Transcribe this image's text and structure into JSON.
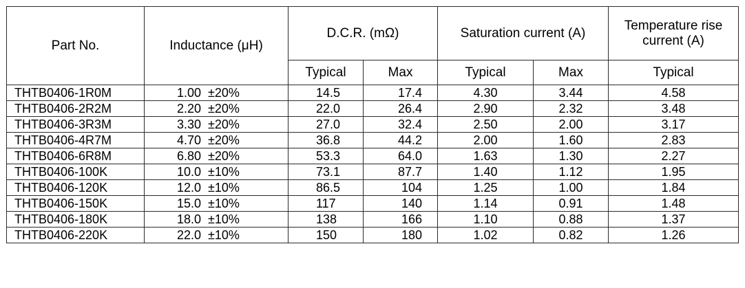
{
  "table": {
    "headers": {
      "part_no": "Part No.",
      "inductance": "Inductance (μH)",
      "dcr": "D.C.R. (mΩ)",
      "saturation": "Saturation current (A)",
      "temp_rise": "Temperature rise current (A)",
      "typical": "Typical",
      "max": "Max"
    },
    "rows": [
      {
        "part": "THTB0406-1R0M",
        "inductance": "1.00  ±20%",
        "dcr_typ": "14.5",
        "dcr_max": "17.4",
        "sat_typ": "4.30",
        "sat_max": "3.44",
        "temp_typ": "4.58"
      },
      {
        "part": "THTB0406-2R2M",
        "inductance": "2.20  ±20%",
        "dcr_typ": "22.0",
        "dcr_max": "26.4",
        "sat_typ": "2.90",
        "sat_max": "2.32",
        "temp_typ": "3.48"
      },
      {
        "part": "THTB0406-3R3M",
        "inductance": "3.30  ±20%",
        "dcr_typ": "27.0",
        "dcr_max": "32.4",
        "sat_typ": "2.50",
        "sat_max": "2.00",
        "temp_typ": "3.17"
      },
      {
        "part": "THTB0406-4R7M",
        "inductance": "4.70  ±20%",
        "dcr_typ": "36.8",
        "dcr_max": "44.2",
        "sat_typ": "2.00",
        "sat_max": "1.60",
        "temp_typ": "2.83"
      },
      {
        "part": "THTB0406-6R8M",
        "inductance": "6.80  ±20%",
        "dcr_typ": "53.3",
        "dcr_max": "64.0",
        "sat_typ": "1.63",
        "sat_max": "1.30",
        "temp_typ": "2.27"
      },
      {
        "part": "THTB0406-100K",
        "inductance": "10.0  ±10%",
        "dcr_typ": "73.1",
        "dcr_max": "87.7",
        "sat_typ": "1.40",
        "sat_max": "1.12",
        "temp_typ": "1.95"
      },
      {
        "part": "THTB0406-120K",
        "inductance": "12.0  ±10%",
        "dcr_typ": "86.5",
        "dcr_max": "104",
        "sat_typ": "1.25",
        "sat_max": "1.00",
        "temp_typ": "1.84"
      },
      {
        "part": "THTB0406-150K",
        "inductance": "15.0  ±10%",
        "dcr_typ": "117",
        "dcr_max": "140",
        "sat_typ": "1.14",
        "sat_max": "0.91",
        "temp_typ": "1.48"
      },
      {
        "part": "THTB0406-180K",
        "inductance": "18.0  ±10%",
        "dcr_typ": "138",
        "dcr_max": "166",
        "sat_typ": "1.10",
        "sat_max": "0.88",
        "temp_typ": "1.37"
      },
      {
        "part": "THTB0406-220K",
        "inductance": "22.0  ±10%",
        "dcr_typ": "150",
        "dcr_max": "180",
        "sat_typ": "1.02",
        "sat_max": "0.82",
        "temp_typ": "1.26"
      }
    ]
  }
}
